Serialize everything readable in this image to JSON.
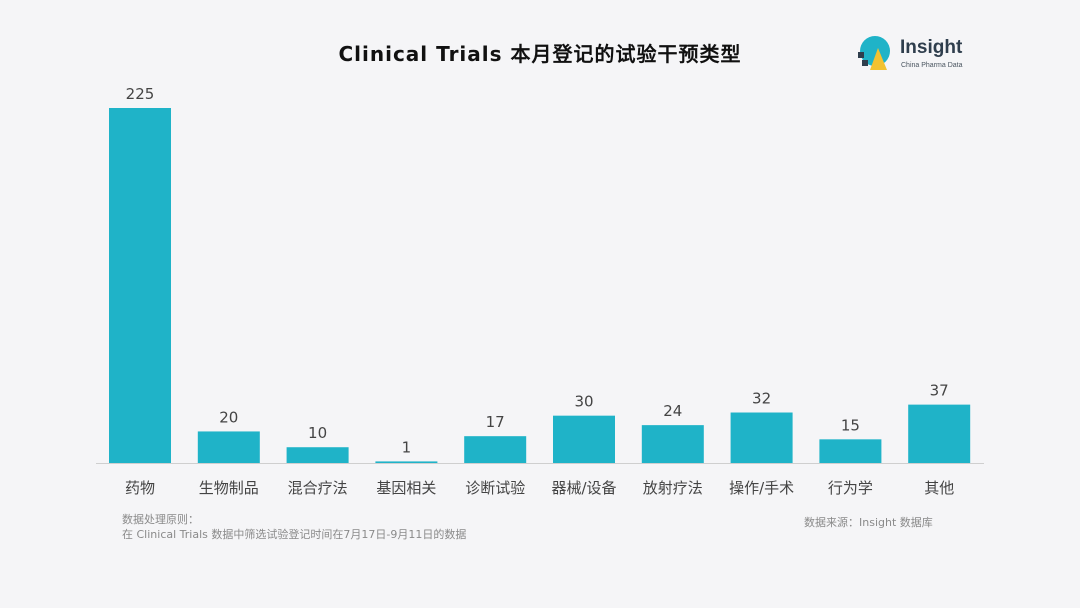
{
  "chart_data": {
    "type": "bar",
    "title": "Clinical Trials 本月登记的试验干预类型",
    "categories": [
      "药物",
      "生物制品",
      "混合疗法",
      "基因相关",
      "诊断试验",
      "器械/设备",
      "放射疗法",
      "操作/手术",
      "行为学",
      "其他"
    ],
    "values": [
      225,
      20,
      10,
      1,
      17,
      30,
      24,
      32,
      15,
      37
    ],
    "xlabel": "",
    "ylabel": "",
    "ylim": [
      0,
      225
    ],
    "grid": false,
    "bar_color": "#1fb3c8",
    "axis_color": "#cfcfcf"
  },
  "logo": {
    "name": "Insight",
    "subtitle": "China Pharma Data",
    "colors": [
      "#1fb3c8",
      "#f2c231",
      "#2f3e4d"
    ]
  },
  "notes": {
    "method_heading": "数据处理原则：",
    "method_text": "在 Clinical Trials 数据中筛选试验登记时间在7月17日-9月11日的数据",
    "source": "数据来源：Insight 数据库"
  }
}
